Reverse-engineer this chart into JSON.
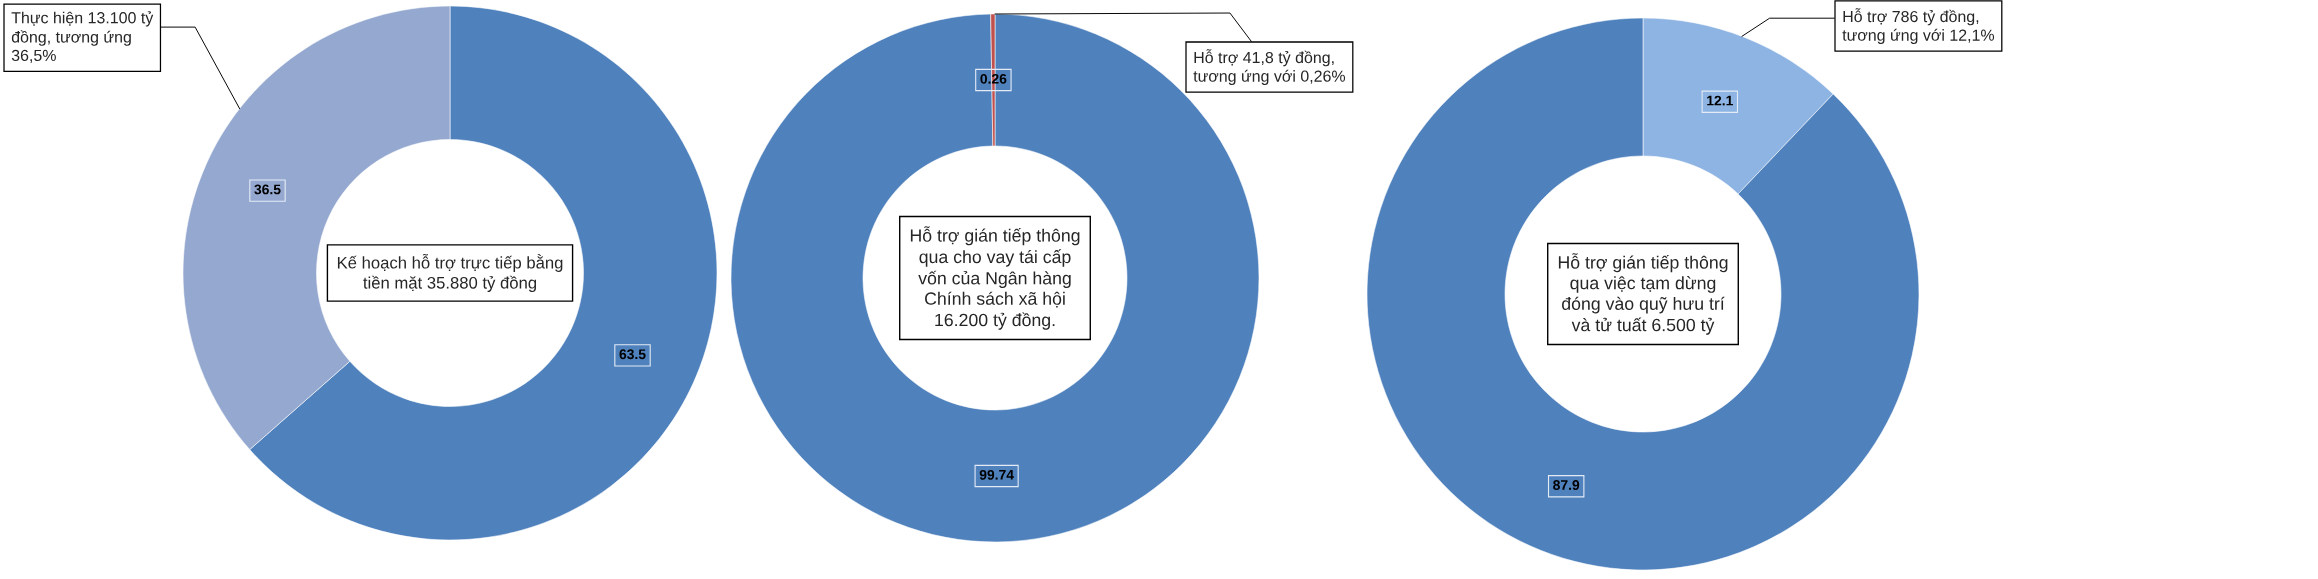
{
  "chart_data": [
    {
      "type": "donut",
      "title": "Kế hoạch hỗ trợ trực tiếp bằng tiền mặt 35.880 tỷ đồng",
      "categories": [
        null,
        null
      ],
      "values": [
        63.5,
        36.5
      ],
      "colors": [
        "#4f81bd",
        "#95a9d0"
      ],
      "data_labels": true,
      "annotations": [
        "Thực hiện 13.100 tỷ đồng, tương ứng 36,5%"
      ]
    },
    {
      "type": "donut",
      "title": "Hỗ trợ gián tiếp thông qua cho vay tái cấp vốn của Ngân hàng Chính sách xã hội 16.200 tỷ đồng.",
      "categories": [
        null,
        null
      ],
      "values": [
        99.74,
        0.26
      ],
      "colors": [
        "#4f81bd",
        "#c0504d"
      ],
      "data_labels": true,
      "annotations": [
        "Hỗ trợ 41,8 tỷ đồng, tương ứng với 0,26%"
      ]
    },
    {
      "type": "donut",
      "title": "Hỗ trợ gián tiếp thông qua việc tạm dừng đóng vào quỹ hưu trí và tử tuất 6.500 tỷ",
      "categories": [
        null,
        null
      ],
      "values": [
        12.1,
        87.9
      ],
      "colors": [
        "#8eb4e3",
        "#4f81bd"
      ],
      "data_labels": true,
      "annotations": [
        "Hỗ trợ 786 tỷ đồng, tương ứng với 12,1%"
      ]
    }
  ]
}
